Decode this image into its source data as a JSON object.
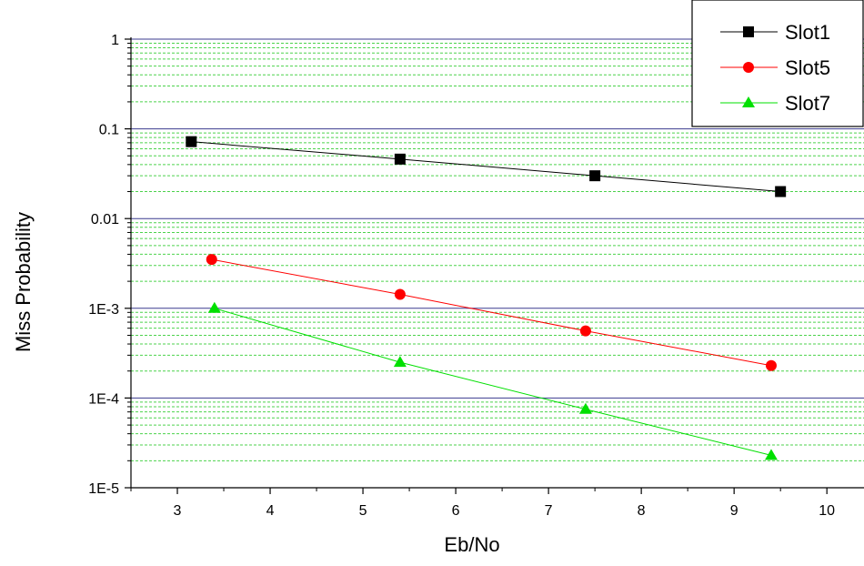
{
  "chart_data": {
    "type": "line",
    "xlabel": "Eb/No",
    "ylabel": "Miss Probability",
    "xlim": [
      2.5,
      10.4
    ],
    "ylim": [
      1e-05,
      1
    ],
    "y_scale": "log",
    "x_ticks": [
      "3",
      "4",
      "5",
      "6",
      "7",
      "8",
      "9",
      "10"
    ],
    "y_ticks": [
      {
        "value": 1,
        "label": "1"
      },
      {
        "value": 0.1,
        "label": "0.1"
      },
      {
        "value": 0.01,
        "label": "0.01"
      },
      {
        "value": 0.001,
        "label": "1E-3"
      },
      {
        "value": 0.0001,
        "label": "1E-4"
      },
      {
        "value": 1e-05,
        "label": "1E-5"
      }
    ],
    "grid": {
      "major_color": "#3b3b8f",
      "minor_color": "#4cd24c",
      "major": true,
      "minor": true
    },
    "legend_position": "top-right",
    "series": [
      {
        "name": "Slot1",
        "color": "#000000",
        "marker": "square",
        "x": [
          3.15,
          5.4,
          7.5,
          9.5
        ],
        "y": [
          0.072,
          0.046,
          0.03,
          0.02
        ]
      },
      {
        "name": "Slot5",
        "color": "#ff0000",
        "marker": "circle",
        "x": [
          3.37,
          5.4,
          7.4,
          9.4
        ],
        "y": [
          0.0035,
          0.00143,
          0.00056,
          0.00023
        ]
      },
      {
        "name": "Slot7",
        "color": "#00e000",
        "marker": "triangle",
        "x": [
          3.4,
          5.4,
          7.4,
          9.4
        ],
        "y": [
          0.001,
          0.00025,
          7.5e-05,
          2.3e-05
        ]
      }
    ]
  }
}
